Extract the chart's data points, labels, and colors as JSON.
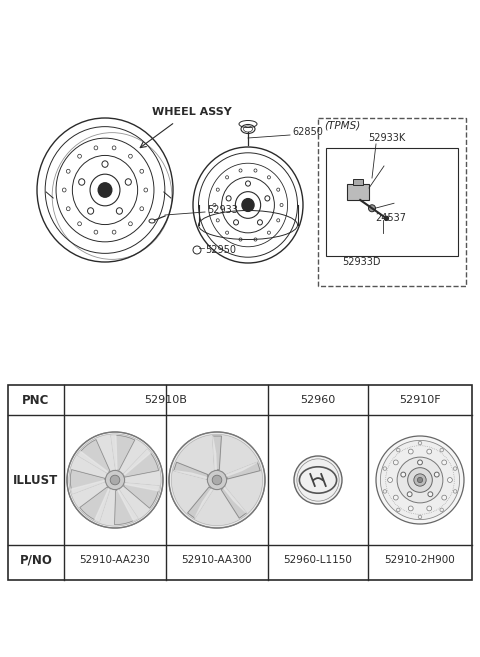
{
  "bg_color": "#ffffff",
  "line_color": "#2a2a2a",
  "top_section": {
    "wheel_assy_label": "WHEEL ASSY",
    "part_52933": "52933",
    "part_52950": "52950",
    "part_62850": "62850",
    "tpms_label": "(TPMS)",
    "part_52933K": "52933K",
    "part_24537": "24537",
    "part_52933D": "52933D"
  },
  "table": {
    "pnc_row": [
      "PNC",
      "52910B",
      "52960",
      "52910F"
    ],
    "pno_row": [
      "P/NO",
      "52910-AA230",
      "52910-AA300",
      "52960-L1150",
      "52910-2H900"
    ]
  }
}
